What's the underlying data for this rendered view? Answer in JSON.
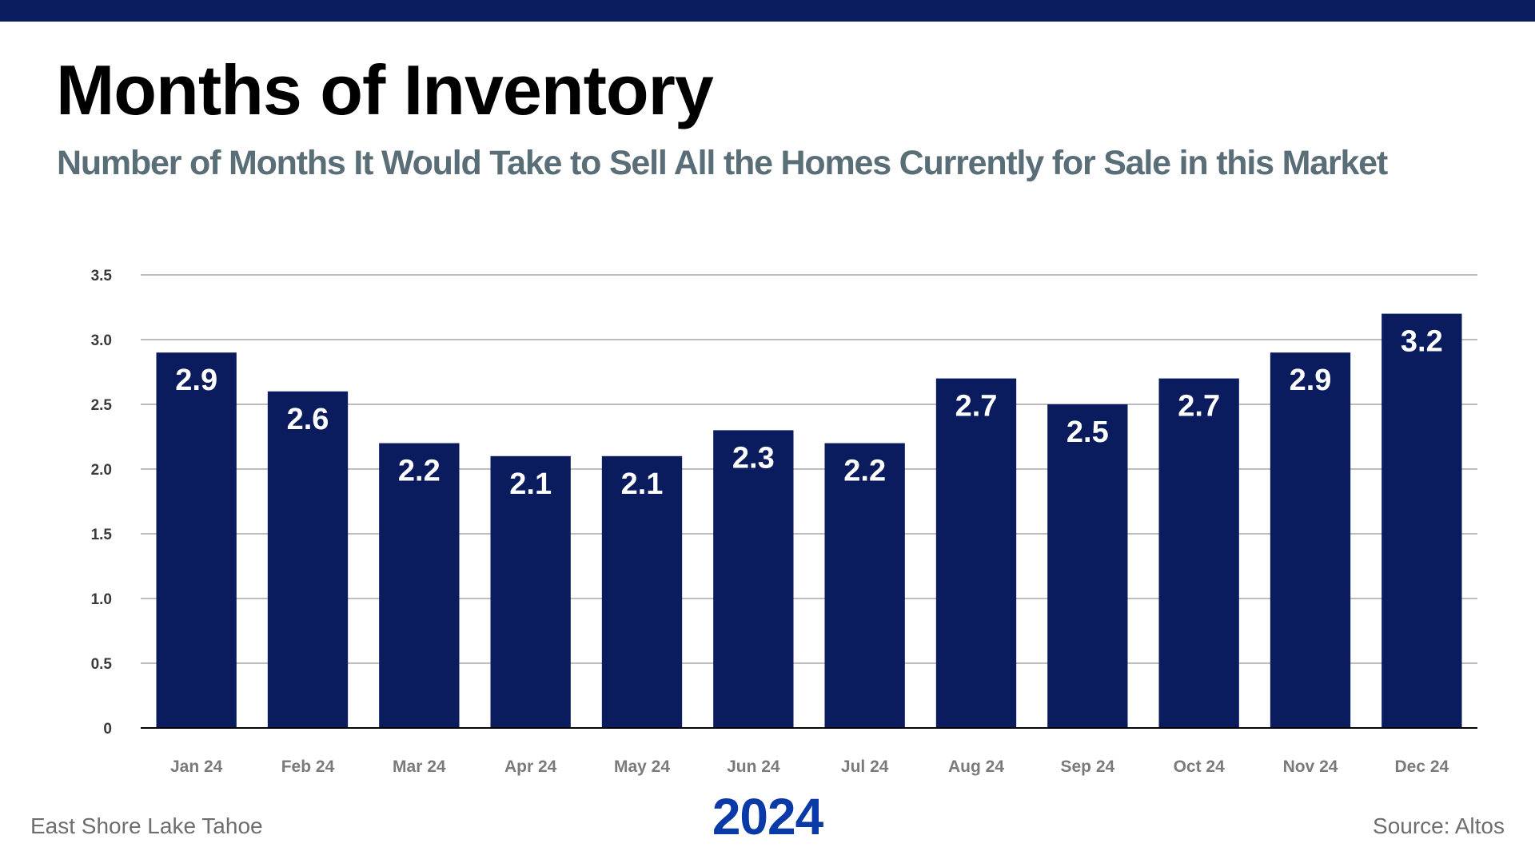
{
  "header": {
    "title": "Months of Inventory",
    "subtitle": "Number of Months It Would Take to Sell All the Homes Currently for Sale in this Market"
  },
  "footer": {
    "location": "East Shore Lake Tahoe",
    "year": "2024",
    "source": "Source: Altos"
  },
  "colors": {
    "bar": "#0a1b5e",
    "top_bar": "#0a1b5e",
    "year": "#0a3aa8",
    "subtitle": "#5a6e78",
    "gridline": "#a8a8a8"
  },
  "chart_data": {
    "type": "bar",
    "title": "Months of Inventory",
    "xlabel": "2024",
    "ylabel": "",
    "categories": [
      "Jan 24",
      "Feb 24",
      "Mar 24",
      "Apr 24",
      "May 24",
      "Jun 24",
      "Jul 24",
      "Aug 24",
      "Sep 24",
      "Oct 24",
      "Nov 24",
      "Dec 24"
    ],
    "values": [
      2.9,
      2.6,
      2.2,
      2.1,
      2.1,
      2.3,
      2.2,
      2.7,
      2.5,
      2.7,
      2.9,
      3.2
    ],
    "data_labels": [
      "2.9",
      "2.6",
      "2.2",
      "2.1",
      "2.1",
      "2.3",
      "2.2",
      "2.7",
      "2.5",
      "2.7",
      "2.9",
      "3.2"
    ],
    "ylim": [
      0,
      3.5
    ],
    "yticks": [
      0,
      0.5,
      1.0,
      1.5,
      2.0,
      2.5,
      3.0,
      3.5
    ],
    "ytick_labels": [
      "0",
      "0.5",
      "1.0",
      "1.5",
      "2.0",
      "2.5",
      "3.0",
      "3.5"
    ],
    "grid": true,
    "legend": "none"
  }
}
